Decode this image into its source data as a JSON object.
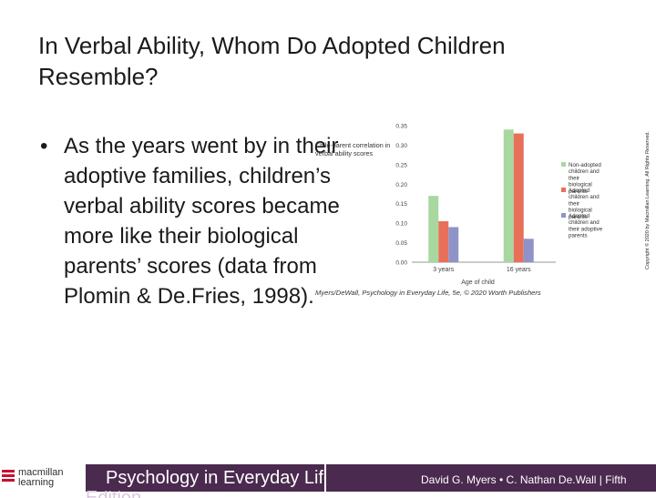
{
  "slide": {
    "title": "In Verbal Ability, Whom Do Adopted Children Resemble?",
    "bullet_marker": "•",
    "bullet": "As the years went by in their adoptive families, children’s verbal ability scores became more like their biological parents’ scores (data from Plomin & De.Fries, 1998).",
    "copyright_vertical": "Copyright © 2020 by Macmillan Learning. All Rights Reserved."
  },
  "footer": {
    "logo_line1": "macmillan",
    "logo_line2": "learning",
    "book_title": "Psychology in Everyday Life",
    "book_title_overflow": "Edition",
    "authors": "David G. Myers • C. Nathan De.Wall | Fifth",
    "colors": {
      "bar": "#4b2a4f",
      "logo_red": "#c8102e"
    }
  },
  "chart_data": {
    "type": "bar",
    "ylabel": "Child-parent correlation in verbal ability scores",
    "xlabel": "Age of child",
    "categories": [
      "3 years",
      "16 years"
    ],
    "ylim": [
      0,
      0.35
    ],
    "yticks": [
      "0.00",
      "0.05",
      "0.10",
      "0.15",
      "0.20",
      "0.25",
      "0.30",
      "0.35"
    ],
    "series": [
      {
        "name": "Non-adopted children and their biological parents",
        "color": "#a8d8a0",
        "values": [
          0.17,
          0.34
        ]
      },
      {
        "name": "Adopted children and their biological parents",
        "color": "#e8705a",
        "values": [
          0.105,
          0.33
        ]
      },
      {
        "name": "Adopted children and their adoptive parents",
        "color": "#8f93c8",
        "values": [
          0.09,
          0.06
        ]
      }
    ],
    "source": "Myers/DeWall, Psychology in Everyday Life, 5e, © 2020 Worth Publishers"
  }
}
